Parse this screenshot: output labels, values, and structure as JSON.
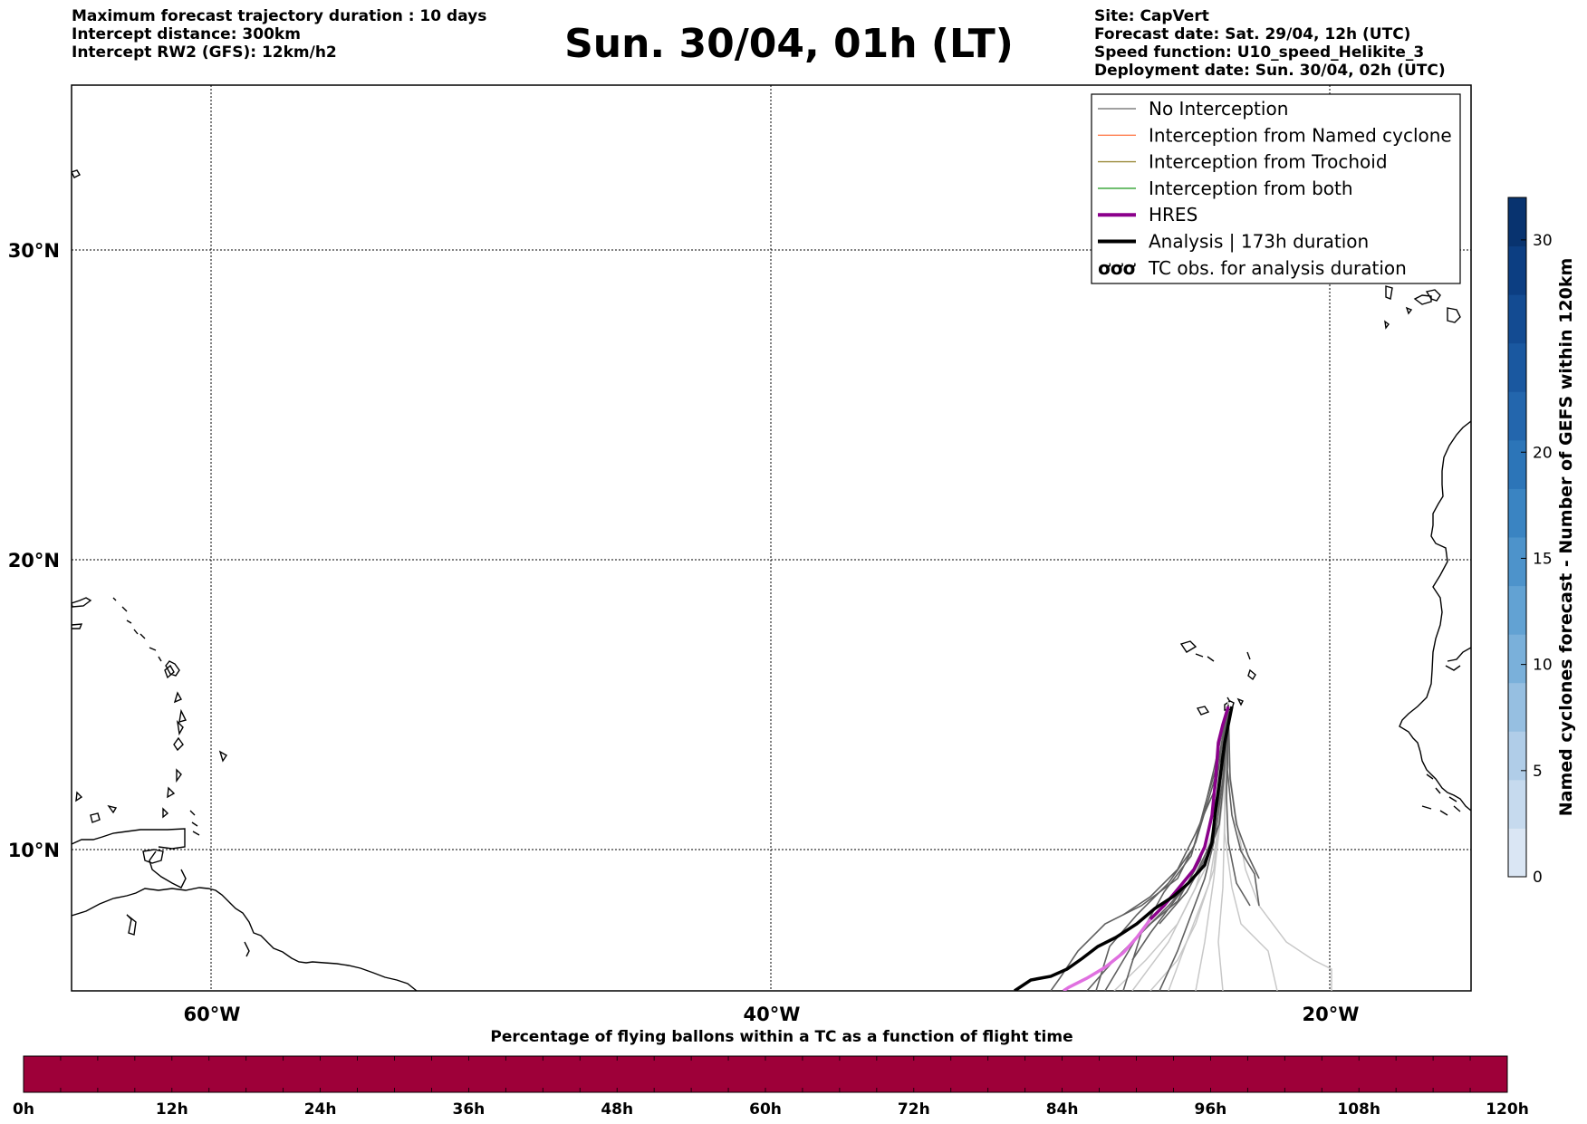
{
  "header": {
    "left_lines": [
      "Maximum forecast trajectory duration : 10 days",
      "Intercept distance: 300km",
      "Intercept RW2 (GFS):  12km/h2"
    ],
    "title": "Sun. 30/04, 01h (LT)",
    "right_lines": [
      "Site: CapVert",
      "Forecast date: Sat. 29/04, 12h (UTC)",
      "Speed function: U10_speed_Helikite_3",
      "Deployment date: Sun. 30/04, 02h (UTC)"
    ]
  },
  "map": {
    "lat_labels": [
      "30°N",
      "20°N",
      "10°N"
    ],
    "lon_labels": [
      "60°W",
      "40°W",
      "20°W"
    ]
  },
  "legend": {
    "items": [
      {
        "label": "No Interception",
        "color": "#808080",
        "style": "thin"
      },
      {
        "label": "Interception from Named cyclone",
        "color": "#ff7f50",
        "style": "thin"
      },
      {
        "label": "Interception from Trochoid",
        "color": "#9a8a3a",
        "style": "thin"
      },
      {
        "label": "Interception from both",
        "color": "#2ca02c",
        "style": "thin"
      },
      {
        "label": "HRES",
        "color": "#8b008b",
        "style": "thick"
      },
      {
        "label": "Analysis | 173h duration",
        "color": "#000000",
        "style": "thick"
      },
      {
        "label": "TC obs. for analysis duration",
        "color": "#000000",
        "style": "symbol",
        "symbol": "ơơơ"
      }
    ]
  },
  "colorbar": {
    "label": "Named cyclones forecast - Number of GEFS within 120km",
    "ticks": [
      "0",
      "5",
      "10",
      "15",
      "20",
      "30"
    ],
    "colors": [
      "#dae6f4",
      "#c6daee",
      "#b0cde8",
      "#96bfe1",
      "#7ab0da",
      "#62a2d3",
      "#4d93cb",
      "#3a84c2",
      "#2c75b8",
      "#2366ad",
      "#1a58a0",
      "#134b92",
      "#0c3e82",
      "#08336f"
    ]
  },
  "hbar": {
    "title": "Percentage of flying ballons within a TC as a function of flight time",
    "ticks": [
      "0h",
      "12h",
      "24h",
      "36h",
      "48h",
      "60h",
      "72h",
      "84h",
      "96h",
      "108h",
      "120h"
    ],
    "fill_color": "#9e0039"
  }
}
